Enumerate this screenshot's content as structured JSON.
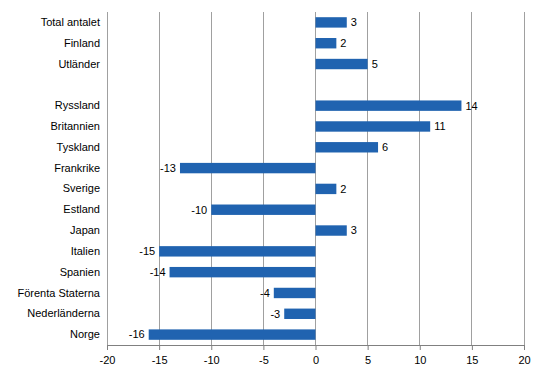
{
  "chart_data": {
    "type": "bar",
    "orientation": "horizontal",
    "categories": [
      "Total antalet",
      "Finland",
      "Utländer",
      null,
      "Ryssland",
      "Britannien",
      "Tyskland",
      "Frankrike",
      "Sverige",
      "Estland",
      "Japan",
      "Italien",
      "Spanien",
      "Förenta Staterna",
      "Nederländerna",
      "Norge"
    ],
    "values": [
      3,
      2,
      5,
      null,
      14,
      11,
      6,
      -13,
      2,
      -10,
      3,
      -15,
      -14,
      -4,
      -3,
      -16
    ],
    "color": "#2063b0",
    "xlim": [
      -20,
      20
    ],
    "xticks": [
      -20,
      -15,
      -10,
      -5,
      0,
      5,
      10,
      15,
      20
    ],
    "grid": true,
    "data_labels": true
  }
}
